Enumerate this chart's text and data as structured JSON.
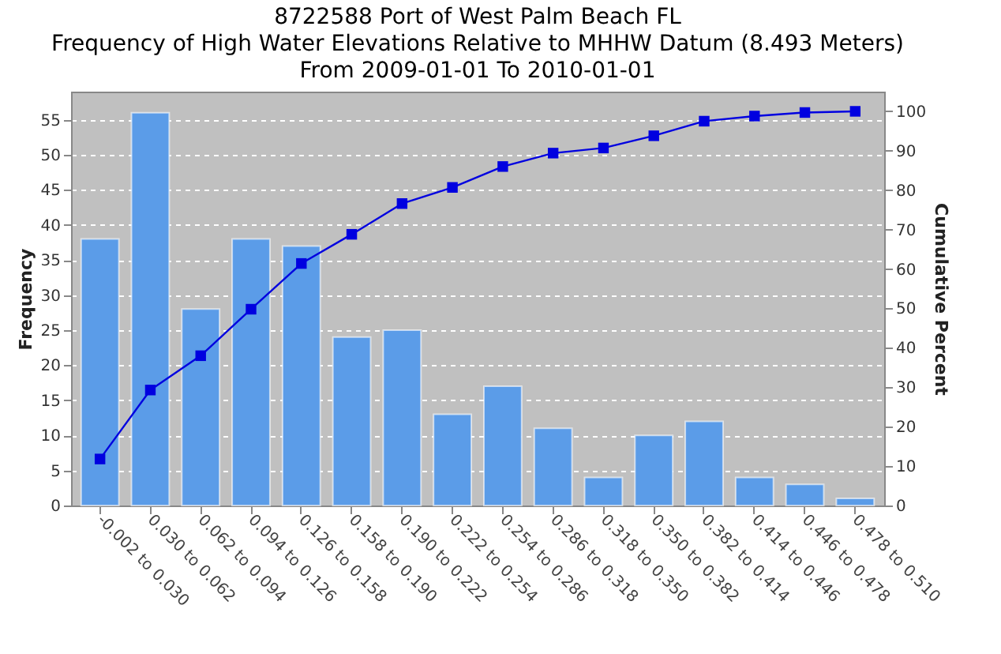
{
  "chart_data": {
    "type": "bar",
    "title": "8722588 Port of West Palm Beach FL",
    "subtitle": "Frequency of High Water Elevations Relative to MHHW Datum (8.493 Meters)\nFrom 2009-01-01 To 2010-01-01",
    "ylabel": "Frequency",
    "y2label": "Cumulative Percent",
    "categories": [
      "-0.002 to 0.030",
      "0.030 to 0.062",
      "0.062 to 0.094",
      "0.094 to 0.126",
      "0.126 to 0.158",
      "0.158 to 0.190",
      "0.190 to 0.222",
      "0.222 to 0.254",
      "0.254 to 0.286",
      "0.286 to 0.318",
      "0.318 to 0.350",
      "0.350 to 0.382",
      "0.382 to 0.414",
      "0.414 to 0.446",
      "0.446 to 0.478",
      "0.478 to 0.510"
    ],
    "series": [
      {
        "color": "#5b9ce8",
        "values": [
          38,
          56,
          28,
          38,
          37,
          24,
          25,
          13,
          17,
          11,
          4,
          10,
          12,
          4,
          3,
          1
        ]
      },
      {
        "type": "line",
        "axis": "y2",
        "color": "#0000e0",
        "marker": "square",
        "values": [
          11.8,
          29.3,
          38.0,
          49.8,
          61.4,
          68.8,
          76.6,
          80.7,
          86.0,
          89.4,
          90.7,
          93.8,
          97.5,
          98.8,
          99.7,
          100
        ]
      }
    ],
    "ylim": [
      0,
      59
    ],
    "yticks": [
      0,
      5,
      10,
      15,
      20,
      25,
      30,
      35,
      40,
      45,
      50,
      55
    ],
    "y2lim": [
      0,
      105
    ],
    "y2ticks": [
      0,
      10,
      20,
      30,
      40,
      50,
      60,
      70,
      80,
      90,
      100
    ],
    "grid": "y"
  }
}
